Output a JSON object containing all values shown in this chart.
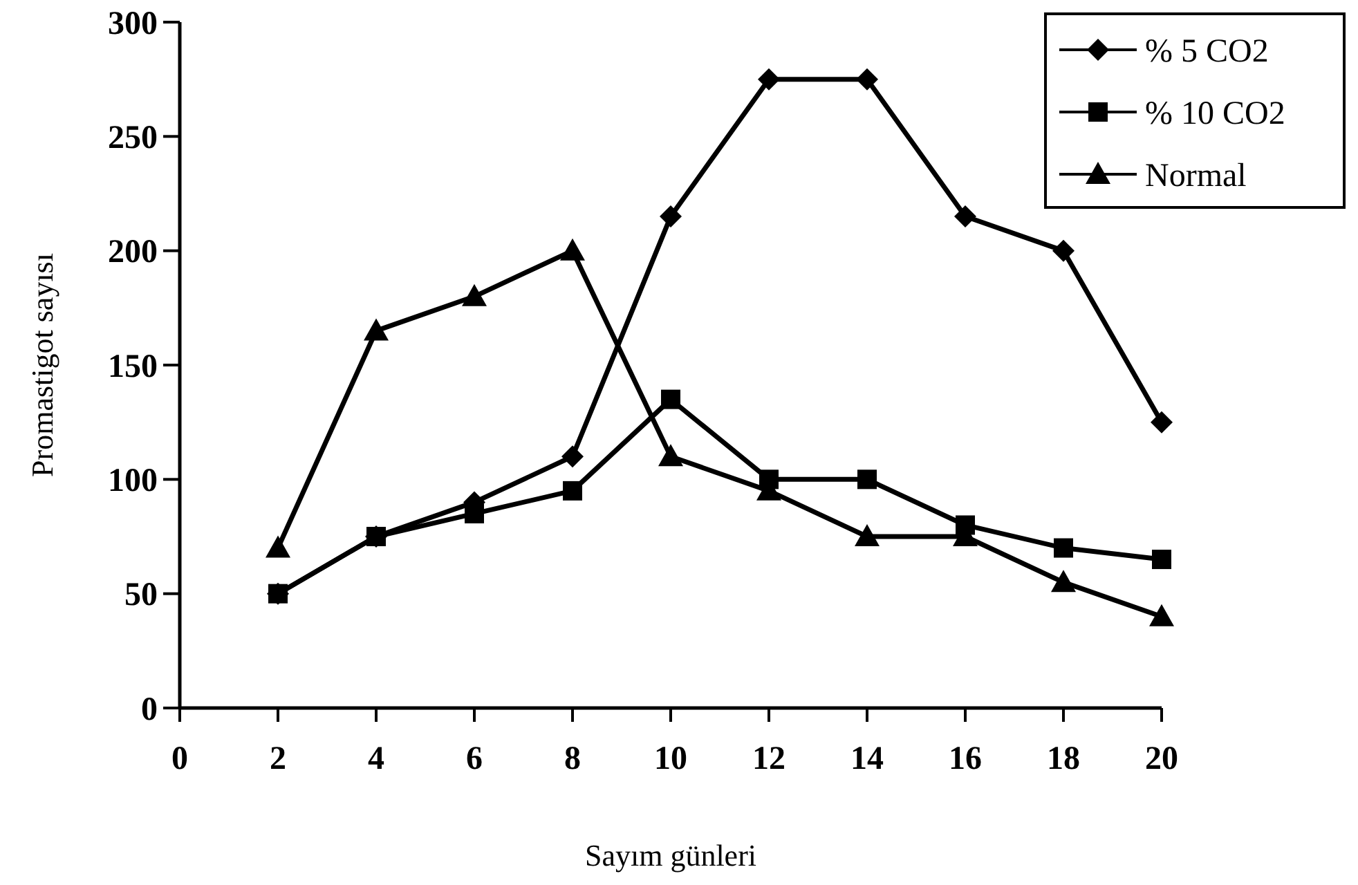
{
  "chart_data": {
    "type": "line",
    "xlabel": "Sayım günleri",
    "ylabel": "Promastigot sayısı",
    "x": [
      2,
      4,
      6,
      8,
      10,
      12,
      14,
      16,
      18,
      20
    ],
    "series": [
      {
        "name": "% 5 CO2",
        "color": "#000000",
        "marker": "diamond",
        "values": [
          50,
          75,
          90,
          110,
          215,
          275,
          275,
          215,
          200,
          125
        ]
      },
      {
        "name": "% 10 CO2",
        "color": "#000000",
        "marker": "square",
        "values": [
          50,
          75,
          85,
          95,
          135,
          100,
          100,
          80,
          70,
          65
        ]
      },
      {
        "name": "Normal",
        "color": "#000000",
        "marker": "triangle",
        "values": [
          70,
          165,
          180,
          200,
          110,
          95,
          75,
          75,
          55,
          40
        ]
      }
    ],
    "xlim": [
      0,
      20
    ],
    "xticks": [
      0,
      2,
      4,
      6,
      8,
      10,
      12,
      14,
      16,
      18,
      20
    ],
    "ylim": [
      0,
      300
    ],
    "yticks": [
      0,
      50,
      100,
      150,
      200,
      250,
      300
    ],
    "grid": false,
    "legend": "top right"
  }
}
